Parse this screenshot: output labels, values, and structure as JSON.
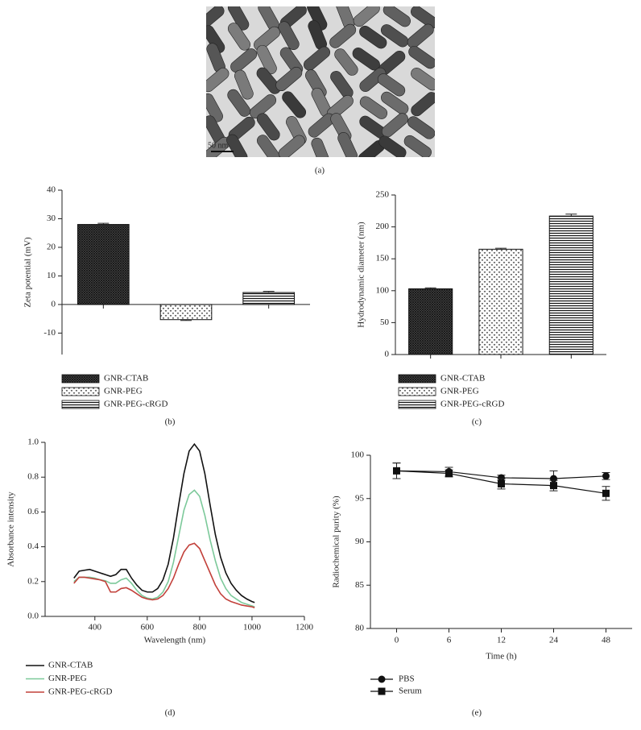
{
  "image": {
    "scale_bar": "50 nm",
    "caption": "(a)"
  },
  "chart_data": [
    {
      "type": "bar",
      "caption": "(b)",
      "ylabel": "Zeta potential (mV)",
      "categories": [
        "GNR-CTAB",
        "GNR-PEG",
        "GNR-PEG-cRGD"
      ],
      "values": [
        28,
        -5.3,
        4.2
      ],
      "errors": [
        0.4,
        0.3,
        0.4
      ],
      "patterns": [
        "crosshatch",
        "dots",
        "stripes"
      ],
      "ylim": [
        -17.5,
        40
      ],
      "yticks": [
        -10,
        0,
        10,
        20,
        30,
        40
      ]
    },
    {
      "type": "bar",
      "caption": "(c)",
      "ylabel": "Hydrodynamic diameter (nm)",
      "categories": [
        "GNR-CTAB",
        "GNR-PEG",
        "GNR-PEG-cRGD"
      ],
      "values": [
        103,
        165,
        217
      ],
      "errors": [
        1.5,
        1.5,
        3
      ],
      "patterns": [
        "crosshatch",
        "dots",
        "stripes"
      ],
      "ylim": [
        0,
        250
      ],
      "yticks": [
        0,
        50,
        100,
        150,
        200,
        250
      ]
    },
    {
      "type": "line",
      "caption": "(d)",
      "xlabel": "Wavelength (nm)",
      "ylabel": "Absorbance intensity",
      "x": [
        320,
        340,
        360,
        380,
        400,
        420,
        440,
        460,
        480,
        500,
        520,
        540,
        560,
        580,
        600,
        620,
        640,
        660,
        680,
        700,
        720,
        740,
        760,
        780,
        800,
        820,
        840,
        860,
        880,
        900,
        920,
        940,
        960,
        980,
        1000,
        1010
      ],
      "series": [
        {
          "name": "GNR-CTAB",
          "color": "#111111",
          "values": [
            0.22,
            0.26,
            0.265,
            0.27,
            0.26,
            0.25,
            0.24,
            0.23,
            0.24,
            0.27,
            0.27,
            0.22,
            0.18,
            0.15,
            0.14,
            0.14,
            0.16,
            0.21,
            0.3,
            0.45,
            0.64,
            0.82,
            0.95,
            0.99,
            0.95,
            0.82,
            0.64,
            0.47,
            0.34,
            0.25,
            0.19,
            0.15,
            0.12,
            0.1,
            0.085,
            0.08
          ]
        },
        {
          "name": "GNR-PEG",
          "color": "#7cc99a",
          "values": [
            0.2,
            0.225,
            0.225,
            0.225,
            0.22,
            0.21,
            0.205,
            0.19,
            0.19,
            0.21,
            0.22,
            0.19,
            0.15,
            0.12,
            0.105,
            0.1,
            0.11,
            0.14,
            0.2,
            0.31,
            0.46,
            0.61,
            0.7,
            0.725,
            0.69,
            0.58,
            0.44,
            0.32,
            0.22,
            0.16,
            0.12,
            0.1,
            0.08,
            0.07,
            0.06,
            0.055
          ]
        },
        {
          "name": "GNR-PEG-cRGD",
          "color": "#c2403a",
          "values": [
            0.19,
            0.225,
            0.225,
            0.22,
            0.215,
            0.21,
            0.2,
            0.14,
            0.14,
            0.16,
            0.165,
            0.15,
            0.13,
            0.11,
            0.1,
            0.095,
            0.1,
            0.12,
            0.16,
            0.22,
            0.3,
            0.37,
            0.41,
            0.42,
            0.39,
            0.32,
            0.25,
            0.18,
            0.13,
            0.1,
            0.085,
            0.075,
            0.065,
            0.06,
            0.055,
            0.05
          ]
        }
      ],
      "xlim": [
        210,
        1200
      ],
      "xticks": [
        400,
        600,
        800,
        1000,
        1200
      ],
      "ylim": [
        0,
        1
      ],
      "yticks": [
        {
          "value": 0,
          "label": "0.0"
        },
        0.2,
        0.4,
        0.6,
        0.8,
        {
          "value": 1,
          "label": "1.0"
        }
      ]
    },
    {
      "type": "errorline",
      "caption": "(e)",
      "xlabel": "Time (h)",
      "ylabel": "Radiochemical purity (%)",
      "categories": [
        "0",
        "6",
        "12",
        "24",
        "48"
      ],
      "series": [
        {
          "name": "PBS",
          "color": "#111111",
          "marker": "circle",
          "values": [
            98.2,
            98.1,
            97.4,
            97.3,
            97.6
          ],
          "errors": [
            0.9,
            0.5,
            0.3,
            0.9,
            0.4
          ]
        },
        {
          "name": "Serum",
          "color": "#111111",
          "marker": "square",
          "values": [
            98.2,
            97.9,
            96.7,
            96.5,
            95.6
          ],
          "errors": [
            0.9,
            0.4,
            0.6,
            0.6,
            0.8
          ]
        }
      ],
      "ylim": [
        80,
        100
      ],
      "yticks": [
        80,
        85,
        90,
        95,
        100
      ]
    }
  ]
}
